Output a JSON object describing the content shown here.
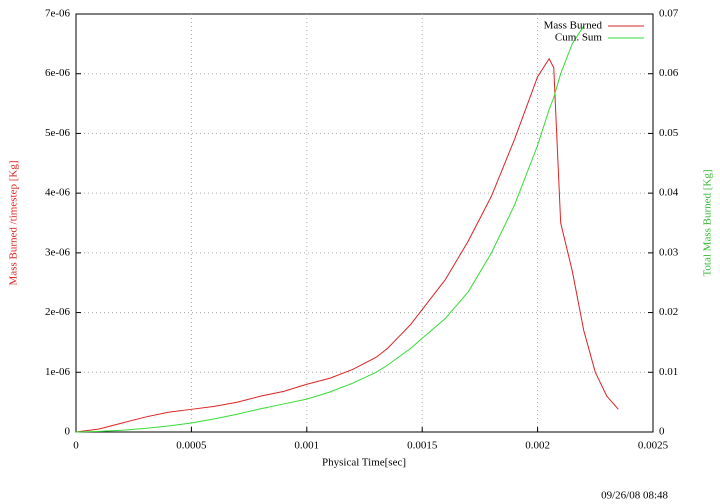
{
  "chart_data": {
    "type": "line",
    "x_label": "Physical Time[sec]",
    "y_label": "Mass Burned /timestep [Kg]",
    "y2_label": "Total Mass Burned [Kg]",
    "annotation": "09/26/08 08:48",
    "x": [
      0,
      0.0001,
      0.0002,
      0.0003,
      0.0004,
      0.0005,
      0.0006,
      0.0007,
      0.0008,
      0.0009,
      0.001,
      0.0011,
      0.0012,
      0.0013,
      0.00135,
      0.0014,
      0.00145,
      0.0015,
      0.0016,
      0.0017,
      0.0018,
      0.0019,
      0.002,
      0.00205,
      0.00207,
      0.0021,
      0.00215,
      0.0022,
      0.00225,
      0.0023,
      0.00235
    ],
    "series": [
      {
        "name": "Mass Burned",
        "color": "#dd2222",
        "values": [
          0,
          5e-08,
          1.5e-07,
          2.5e-07,
          3.3e-07,
          3.8e-07,
          4.3e-07,
          5e-07,
          6e-07,
          6.8e-07,
          8e-07,
          9e-07,
          1.05e-06,
          1.25e-06,
          1.4e-06,
          1.6e-06,
          1.8e-06,
          2.05e-06,
          2.55e-06,
          3.2e-06,
          3.95e-06,
          4.9e-06,
          5.95e-06,
          6.25e-06,
          6.1e-06,
          3.5e-06,
          2.7e-06,
          1.7e-06,
          1e-06,
          6e-07,
          3.8e-07
        ]
      },
      {
        "name": "Cum. Sum",
        "color": "#33dd33",
        "axis": "y2",
        "values": [
          0,
          0.0001,
          0.0003,
          0.0006,
          0.001,
          0.0015,
          0.0022,
          0.003,
          0.0039,
          0.0047,
          0.0055,
          0.0067,
          0.0082,
          0.01,
          0.0112,
          0.0126,
          0.014,
          0.0157,
          0.019,
          0.0235,
          0.03,
          0.038,
          0.048,
          0.054,
          0.056,
          0.06,
          0.065,
          0.068,
          null,
          null,
          null
        ]
      }
    ],
    "xlim": [
      0,
      0.0025
    ],
    "xticks": [
      0,
      0.0005,
      0.001,
      0.0015,
      0.002,
      0.0025
    ],
    "ylim": [
      0,
      7e-06
    ],
    "yticks": [
      0,
      {
        "value": 1e-06,
        "label": "1e-06"
      },
      {
        "value": 2e-06,
        "label": "2e-06"
      },
      {
        "value": 3e-06,
        "label": "3e-06"
      },
      {
        "value": 4e-06,
        "label": "4e-06"
      },
      {
        "value": 5e-06,
        "label": "5e-06"
      },
      {
        "value": 6e-06,
        "label": "6e-06"
      },
      {
        "value": 7e-06,
        "label": "7e-06"
      }
    ],
    "y2lim": [
      0,
      0.07
    ],
    "y2ticks": [
      0,
      0.01,
      0.02,
      0.03,
      0.04,
      0.05,
      0.06,
      0.07
    ],
    "grid": true,
    "legend": "top-right"
  }
}
